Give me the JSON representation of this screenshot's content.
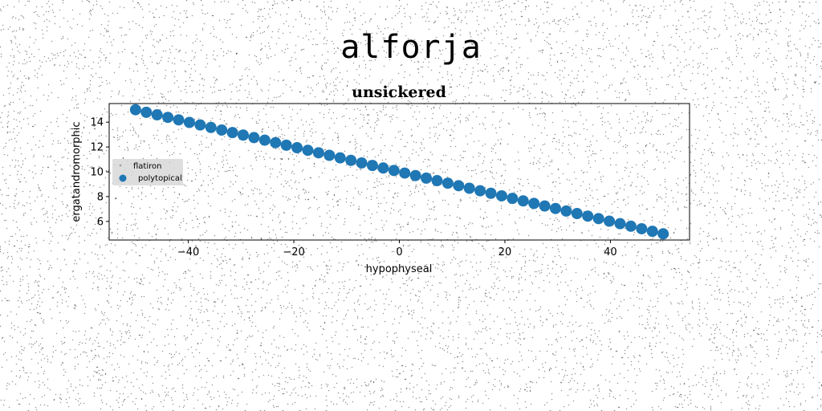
{
  "figure_title": "alforja",
  "chart_data": {
    "type": "scatter",
    "title": "unsickered",
    "xlabel": "hypophyseal",
    "ylabel": "ergatandromorphic",
    "xlim": [
      -55,
      55
    ],
    "ylim": [
      4.5,
      15.5
    ],
    "xticks": [
      -40,
      -20,
      0,
      20,
      40
    ],
    "yticks": [
      6,
      8,
      10,
      12,
      14
    ],
    "grid": false,
    "legend_placement": "center-left",
    "series": [
      {
        "name": "flatiron",
        "marker": "small-dot",
        "color": "#9a9a9a",
        "x_range": [
          -50,
          50
        ],
        "y_range": [
          15,
          5
        ],
        "count": 50
      },
      {
        "name": "polytopical",
        "marker": "circle",
        "color": "#1f77b4",
        "x_range": [
          -50,
          50
        ],
        "y_range": [
          15,
          5
        ],
        "count": 50
      }
    ]
  }
}
